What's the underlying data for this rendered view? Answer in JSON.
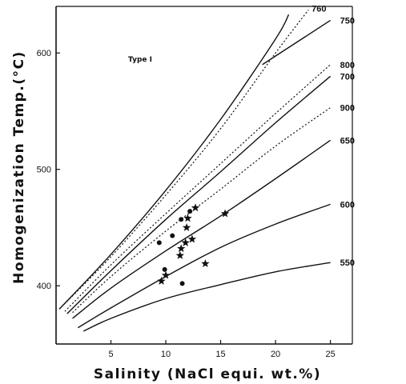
{
  "chart_data": {
    "type": "line",
    "xlabel": "Salinity (NaCl equi. wt.%)",
    "ylabel": "Homogenization Temp.(°C)",
    "xlim": [
      0,
      27
    ],
    "ylim": [
      350,
      640
    ],
    "xticks": [
      5,
      10,
      15,
      20,
      25
    ],
    "yticks": [
      400,
      500,
      600
    ],
    "annotation": "Type I",
    "series": [
      {
        "name": "760",
        "style": "dotted",
        "x": [
          0.3,
          5,
          10,
          15,
          20,
          23
        ],
        "y": [
          380,
          425,
          478,
          535,
          600,
          637
        ]
      },
      {
        "name": "750",
        "style": "solid",
        "x": [
          0.3,
          5,
          10,
          15,
          20,
          21.2
        ],
        "y": [
          380,
          427,
          482,
          543,
          612,
          633
        ]
      },
      {
        "name": "800",
        "style": "dotted",
        "x": [
          0.8,
          5,
          10,
          15,
          20,
          25
        ],
        "y": [
          378,
          418,
          462,
          505,
          548,
          590
        ]
      },
      {
        "name": "700",
        "style": "solid",
        "x": [
          1,
          5,
          10,
          15,
          20,
          25
        ],
        "y": [
          376,
          413,
          457,
          498,
          540,
          580
        ]
      },
      {
        "name": "900",
        "style": "dotted",
        "x": [
          1.5,
          5,
          10,
          15,
          20,
          25
        ],
        "y": [
          377,
          408,
          447,
          483,
          520,
          553
        ]
      },
      {
        "name": "650",
        "style": "solid",
        "x": [
          1.5,
          5,
          10,
          15,
          20,
          25
        ],
        "y": [
          372,
          398,
          430,
          460,
          492,
          525
        ]
      },
      {
        "name": "600",
        "style": "solid",
        "x": [
          2,
          5,
          10,
          15,
          20,
          25
        ],
        "y": [
          364,
          381,
          408,
          433,
          453,
          470
        ]
      },
      {
        "name": "550",
        "style": "solid",
        "x": [
          2.5,
          5,
          10,
          15,
          20,
          25
        ],
        "y": [
          361,
          372,
          389,
          401,
          412,
          420
        ]
      },
      {
        "name": "",
        "style": "solid",
        "x": [
          18.8,
          25
        ],
        "y": [
          590,
          628
        ]
      }
    ],
    "markers": {
      "circles": [
        {
          "x": 9.4,
          "y": 437
        },
        {
          "x": 10.6,
          "y": 443
        },
        {
          "x": 9.9,
          "y": 414
        },
        {
          "x": 11.4,
          "y": 457
        },
        {
          "x": 12.2,
          "y": 464
        },
        {
          "x": 11.5,
          "y": 402
        }
      ],
      "stars": [
        {
          "x": 12.7,
          "y": 467
        },
        {
          "x": 12.0,
          "y": 458
        },
        {
          "x": 11.9,
          "y": 450
        },
        {
          "x": 11.8,
          "y": 437
        },
        {
          "x": 12.4,
          "y": 440
        },
        {
          "x": 11.4,
          "y": 432
        },
        {
          "x": 11.3,
          "y": 426
        },
        {
          "x": 10.0,
          "y": 409
        },
        {
          "x": 9.6,
          "y": 404
        },
        {
          "x": 13.6,
          "y": 419
        },
        {
          "x": 15.4,
          "y": 462
        }
      ]
    }
  }
}
